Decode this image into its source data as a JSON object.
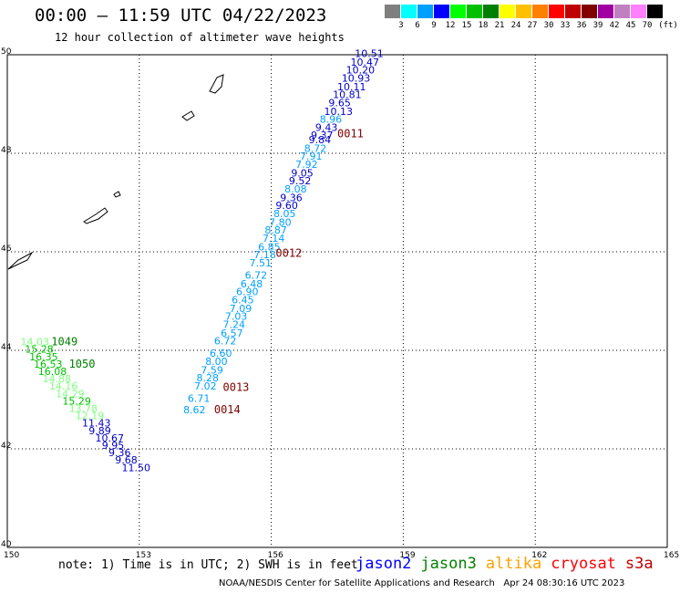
{
  "title": "00:00 – 11:59 UTC 04/22/2023",
  "subtitle": "12 hour collection of altimeter wave heights",
  "note": "note: 1) Time is in UTC; 2) SWH is in feet",
  "credit": "NOAA/NESDIS Center for Satellite Applications and Research   Apr 24 08:30:16 UTC 2023",
  "colorbar": {
    "labels": [
      "3",
      "6",
      "9",
      "12",
      "15",
      "18",
      "21",
      "24",
      "27",
      "30",
      "33",
      "36",
      "39",
      "42",
      "45",
      "70"
    ],
    "unit": "(ft)",
    "colors": [
      "#7f7f7f",
      "#00ffff",
      "#00a0ff",
      "#0000ff",
      "#00ff00",
      "#00c000",
      "#008000",
      "#ffff00",
      "#ffc000",
      "#ff8000",
      "#ff0000",
      "#c00000",
      "#800000",
      "#a000a0",
      "#c080c0",
      "#ff80ff",
      "#000000"
    ]
  },
  "legend": [
    {
      "name": "jason2",
      "color": "#0000ff"
    },
    {
      "name": "jason3",
      "color": "#008000"
    },
    {
      "name": "altika",
      "color": "#ffa000"
    },
    {
      "name": "cryosat",
      "color": "#ff0000"
    },
    {
      "name": "s3a",
      "color": "#c00000"
    }
  ],
  "chart_data": {
    "type": "scatter",
    "xlim": [
      150,
      165
    ],
    "ylim": [
      40,
      50
    ],
    "x_ticks": [
      "150",
      "153",
      "156",
      "159",
      "162",
      "165"
    ],
    "y_ticks": [
      "40",
      "42",
      "44",
      "46",
      "48",
      "50"
    ],
    "grid": true,
    "points": [
      {
        "lon": 157.9,
        "lat": 49.95,
        "v": "10.51",
        "c": "#0000c8"
      },
      {
        "lon": 157.8,
        "lat": 49.78,
        "v": "10.47",
        "c": "#0000c8"
      },
      {
        "lon": 157.7,
        "lat": 49.62,
        "v": "10.20",
        "c": "#0000c8"
      },
      {
        "lon": 157.6,
        "lat": 49.45,
        "v": "10.93",
        "c": "#0000c8"
      },
      {
        "lon": 157.5,
        "lat": 49.28,
        "v": "10.11",
        "c": "#0000c8"
      },
      {
        "lon": 157.4,
        "lat": 49.12,
        "v": "10.81",
        "c": "#0000c8"
      },
      {
        "lon": 157.3,
        "lat": 48.95,
        "v": "9.65",
        "c": "#0000c8"
      },
      {
        "lon": 157.2,
        "lat": 48.78,
        "v": "10.13",
        "c": "#0000c8"
      },
      {
        "lon": 157.1,
        "lat": 48.62,
        "v": "8.96",
        "c": "#00a0ff"
      },
      {
        "lon": 157.0,
        "lat": 48.45,
        "v": "9.43",
        "c": "#0000c8"
      },
      {
        "lon": 156.9,
        "lat": 48.3,
        "v": "9.37",
        "c": "#0000c8"
      },
      {
        "lon": 156.85,
        "lat": 48.2,
        "v": "9.84",
        "c": "#0000c8"
      },
      {
        "lon": 156.75,
        "lat": 48.03,
        "v": "8.72",
        "c": "#00a0ff"
      },
      {
        "lon": 156.65,
        "lat": 47.87,
        "v": "7.91",
        "c": "#00a0ff"
      },
      {
        "lon": 156.55,
        "lat": 47.7,
        "v": "7.92",
        "c": "#00a0ff"
      },
      {
        "lon": 156.45,
        "lat": 47.53,
        "v": "9.05",
        "c": "#0000c8"
      },
      {
        "lon": 156.4,
        "lat": 47.37,
        "v": "9.52",
        "c": "#0000c8"
      },
      {
        "lon": 156.3,
        "lat": 47.2,
        "v": "8.08",
        "c": "#00a0ff"
      },
      {
        "lon": 156.2,
        "lat": 47.03,
        "v": "9.36",
        "c": "#0000c8"
      },
      {
        "lon": 156.1,
        "lat": 46.87,
        "v": "9.60",
        "c": "#0000c8"
      },
      {
        "lon": 156.05,
        "lat": 46.7,
        "v": "8.05",
        "c": "#00a0ff"
      },
      {
        "lon": 155.95,
        "lat": 46.53,
        "v": "7.80",
        "c": "#00a0ff"
      },
      {
        "lon": 155.85,
        "lat": 46.37,
        "v": "8.87",
        "c": "#00a0ff"
      },
      {
        "lon": 155.8,
        "lat": 46.2,
        "v": "7.14",
        "c": "#00a0ff"
      },
      {
        "lon": 155.7,
        "lat": 46.03,
        "v": "6.85",
        "c": "#00a0ff"
      },
      {
        "lon": 155.6,
        "lat": 45.87,
        "v": "7.18",
        "c": "#00a0ff"
      },
      {
        "lon": 155.5,
        "lat": 45.7,
        "v": "7.51",
        "c": "#00a0ff"
      },
      {
        "lon": 155.4,
        "lat": 45.45,
        "v": "6.72",
        "c": "#00a0ff"
      },
      {
        "lon": 155.3,
        "lat": 45.28,
        "v": "6.48",
        "c": "#00a0ff"
      },
      {
        "lon": 155.2,
        "lat": 45.12,
        "v": "6.90",
        "c": "#00a0ff"
      },
      {
        "lon": 155.1,
        "lat": 44.95,
        "v": "6.45",
        "c": "#00a0ff"
      },
      {
        "lon": 155.05,
        "lat": 44.78,
        "v": "7.09",
        "c": "#00a0ff"
      },
      {
        "lon": 154.95,
        "lat": 44.62,
        "v": "7.03",
        "c": "#00a0ff"
      },
      {
        "lon": 154.9,
        "lat": 44.45,
        "v": "7.24",
        "c": "#00a0ff"
      },
      {
        "lon": 154.85,
        "lat": 44.28,
        "v": "6.57",
        "c": "#00a0ff"
      },
      {
        "lon": 154.7,
        "lat": 44.12,
        "v": "6.72",
        "c": "#00a0ff"
      },
      {
        "lon": 154.6,
        "lat": 43.87,
        "v": "6.60",
        "c": "#00a0ff"
      },
      {
        "lon": 154.5,
        "lat": 43.7,
        "v": "8.00",
        "c": "#00a0ff"
      },
      {
        "lon": 154.4,
        "lat": 43.53,
        "v": "7.59",
        "c": "#00a0ff"
      },
      {
        "lon": 154.3,
        "lat": 43.37,
        "v": "8.28",
        "c": "#00a0ff"
      },
      {
        "lon": 154.25,
        "lat": 43.2,
        "v": "7.02",
        "c": "#00a0ff"
      },
      {
        "lon": 154.1,
        "lat": 42.95,
        "v": "6.71",
        "c": "#00a0ff"
      },
      {
        "lon": 154.0,
        "lat": 42.72,
        "v": "8.62",
        "c": "#00a0ff"
      },
      {
        "lon": 150.3,
        "lat": 44.1,
        "v": "14.03",
        "c": "#80ff80"
      },
      {
        "lon": 150.4,
        "lat": 43.95,
        "v": "15.28",
        "c": "#00c000"
      },
      {
        "lon": 150.5,
        "lat": 43.8,
        "v": "16.35",
        "c": "#00c000"
      },
      {
        "lon": 150.6,
        "lat": 43.65,
        "v": "16.53",
        "c": "#00c000"
      },
      {
        "lon": 150.7,
        "lat": 43.5,
        "v": "16.08",
        "c": "#00c000"
      },
      {
        "lon": 150.8,
        "lat": 43.35,
        "v": "14.88",
        "c": "#80ff80"
      },
      {
        "lon": 150.95,
        "lat": 43.2,
        "v": "14.16",
        "c": "#80ff80"
      },
      {
        "lon": 151.1,
        "lat": 43.05,
        "v": "14.29",
        "c": "#80ff80"
      },
      {
        "lon": 151.25,
        "lat": 42.9,
        "v": "15.29",
        "c": "#00c000"
      },
      {
        "lon": 151.4,
        "lat": 42.75,
        "v": "13.78",
        "c": "#80ff80"
      },
      {
        "lon": 151.55,
        "lat": 42.6,
        "v": "12.19",
        "c": "#80ff80"
      },
      {
        "lon": 151.7,
        "lat": 42.45,
        "v": "11.43",
        "c": "#0000c8"
      },
      {
        "lon": 151.85,
        "lat": 42.3,
        "v": "9.89",
        "c": "#0000c8"
      },
      {
        "lon": 152.0,
        "lat": 42.15,
        "v": "10.67",
        "c": "#0000c8"
      },
      {
        "lon": 152.15,
        "lat": 42.0,
        "v": "9.95",
        "c": "#0000c8"
      },
      {
        "lon": 152.3,
        "lat": 41.85,
        "v": "9.36",
        "c": "#0000c8"
      },
      {
        "lon": 152.45,
        "lat": 41.7,
        "v": "9.68",
        "c": "#0000c8"
      },
      {
        "lon": 152.6,
        "lat": 41.55,
        "v": "11.50",
        "c": "#0000c8"
      }
    ],
    "track_labels": [
      {
        "lon": 157.5,
        "lat": 48.32,
        "text": "0011",
        "c": "#800000"
      },
      {
        "lon": 156.1,
        "lat": 45.9,
        "text": "0012",
        "c": "#800000"
      },
      {
        "lon": 154.9,
        "lat": 43.18,
        "text": "0013",
        "c": "#800000"
      },
      {
        "lon": 154.7,
        "lat": 42.72,
        "text": "0014",
        "c": "#800000"
      },
      {
        "lon": 151.0,
        "lat": 44.1,
        "text": "1049",
        "c": "#008000"
      },
      {
        "lon": 151.4,
        "lat": 43.65,
        "text": "1050",
        "c": "#008000"
      }
    ]
  }
}
